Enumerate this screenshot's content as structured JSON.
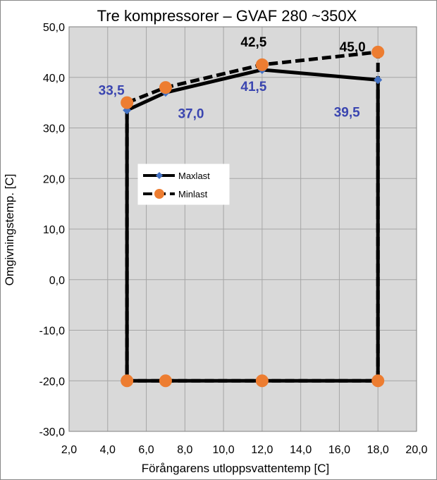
{
  "chart_data": {
    "type": "scatter",
    "title": "Tre kompressorer – GVAF 280 ~350X",
    "xlabel": "Förångarens utloppsvattentemp [C]",
    "ylabel": "Omgivningstemp. [C]",
    "xlim": [
      2.0,
      20.0
    ],
    "ylim": [
      -30.0,
      50.0
    ],
    "x_ticks": [
      "2,0",
      "4,0",
      "6,0",
      "8,0",
      "10,0",
      "12,0",
      "14,0",
      "16,0",
      "18,0",
      "20,0"
    ],
    "y_ticks": [
      "-30,0",
      "-20,0",
      "-10,0",
      "0,0",
      "10,0",
      "20,0",
      "30,0",
      "40,0",
      "50,0"
    ],
    "x_tick_values": [
      2,
      4,
      6,
      8,
      10,
      12,
      14,
      16,
      18,
      20
    ],
    "y_tick_values": [
      -30,
      -20,
      -10,
      0,
      10,
      20,
      30,
      40,
      50
    ],
    "grid": true,
    "legend_position": "middle-left",
    "series": [
      {
        "name": "Maxlast",
        "line_style": "solid",
        "marker": "diamond",
        "line_color": "#000000",
        "marker_color": "#4472c4",
        "x": [
          5,
          7,
          12,
          18,
          18,
          5,
          5
        ],
        "y": [
          33.5,
          37.0,
          41.5,
          39.5,
          -20,
          -20,
          33.5
        ]
      },
      {
        "name": "Minlast",
        "line_style": "dashed",
        "marker": "circle",
        "line_color": "#000000",
        "marker_color": "#ed7d31",
        "x": [
          5,
          7,
          12,
          18,
          18,
          12,
          7,
          5,
          5
        ],
        "y": [
          35,
          38,
          42.5,
          45.0,
          -20,
          -20,
          -20,
          -20,
          35
        ]
      }
    ],
    "annotations": [
      {
        "text": "33,5",
        "x": 5,
        "y": 33.5,
        "color": "#3a45b0"
      },
      {
        "text": "37,0",
        "x": 7,
        "y": 37.0,
        "color": "#3a45b0"
      },
      {
        "text": "41,5",
        "x": 12,
        "y": 41.5,
        "color": "#3a45b0"
      },
      {
        "text": "39,5",
        "x": 18,
        "y": 39.5,
        "color": "#3a45b0"
      },
      {
        "text": "42,5",
        "x": 12,
        "y": 42.5,
        "color": "#000000"
      },
      {
        "text": "45,0",
        "x": 18,
        "y": 45.0,
        "color": "#000000"
      }
    ],
    "colors": {
      "plot_background": "#d9d9d9",
      "gridline": "#a6a6a6"
    }
  }
}
